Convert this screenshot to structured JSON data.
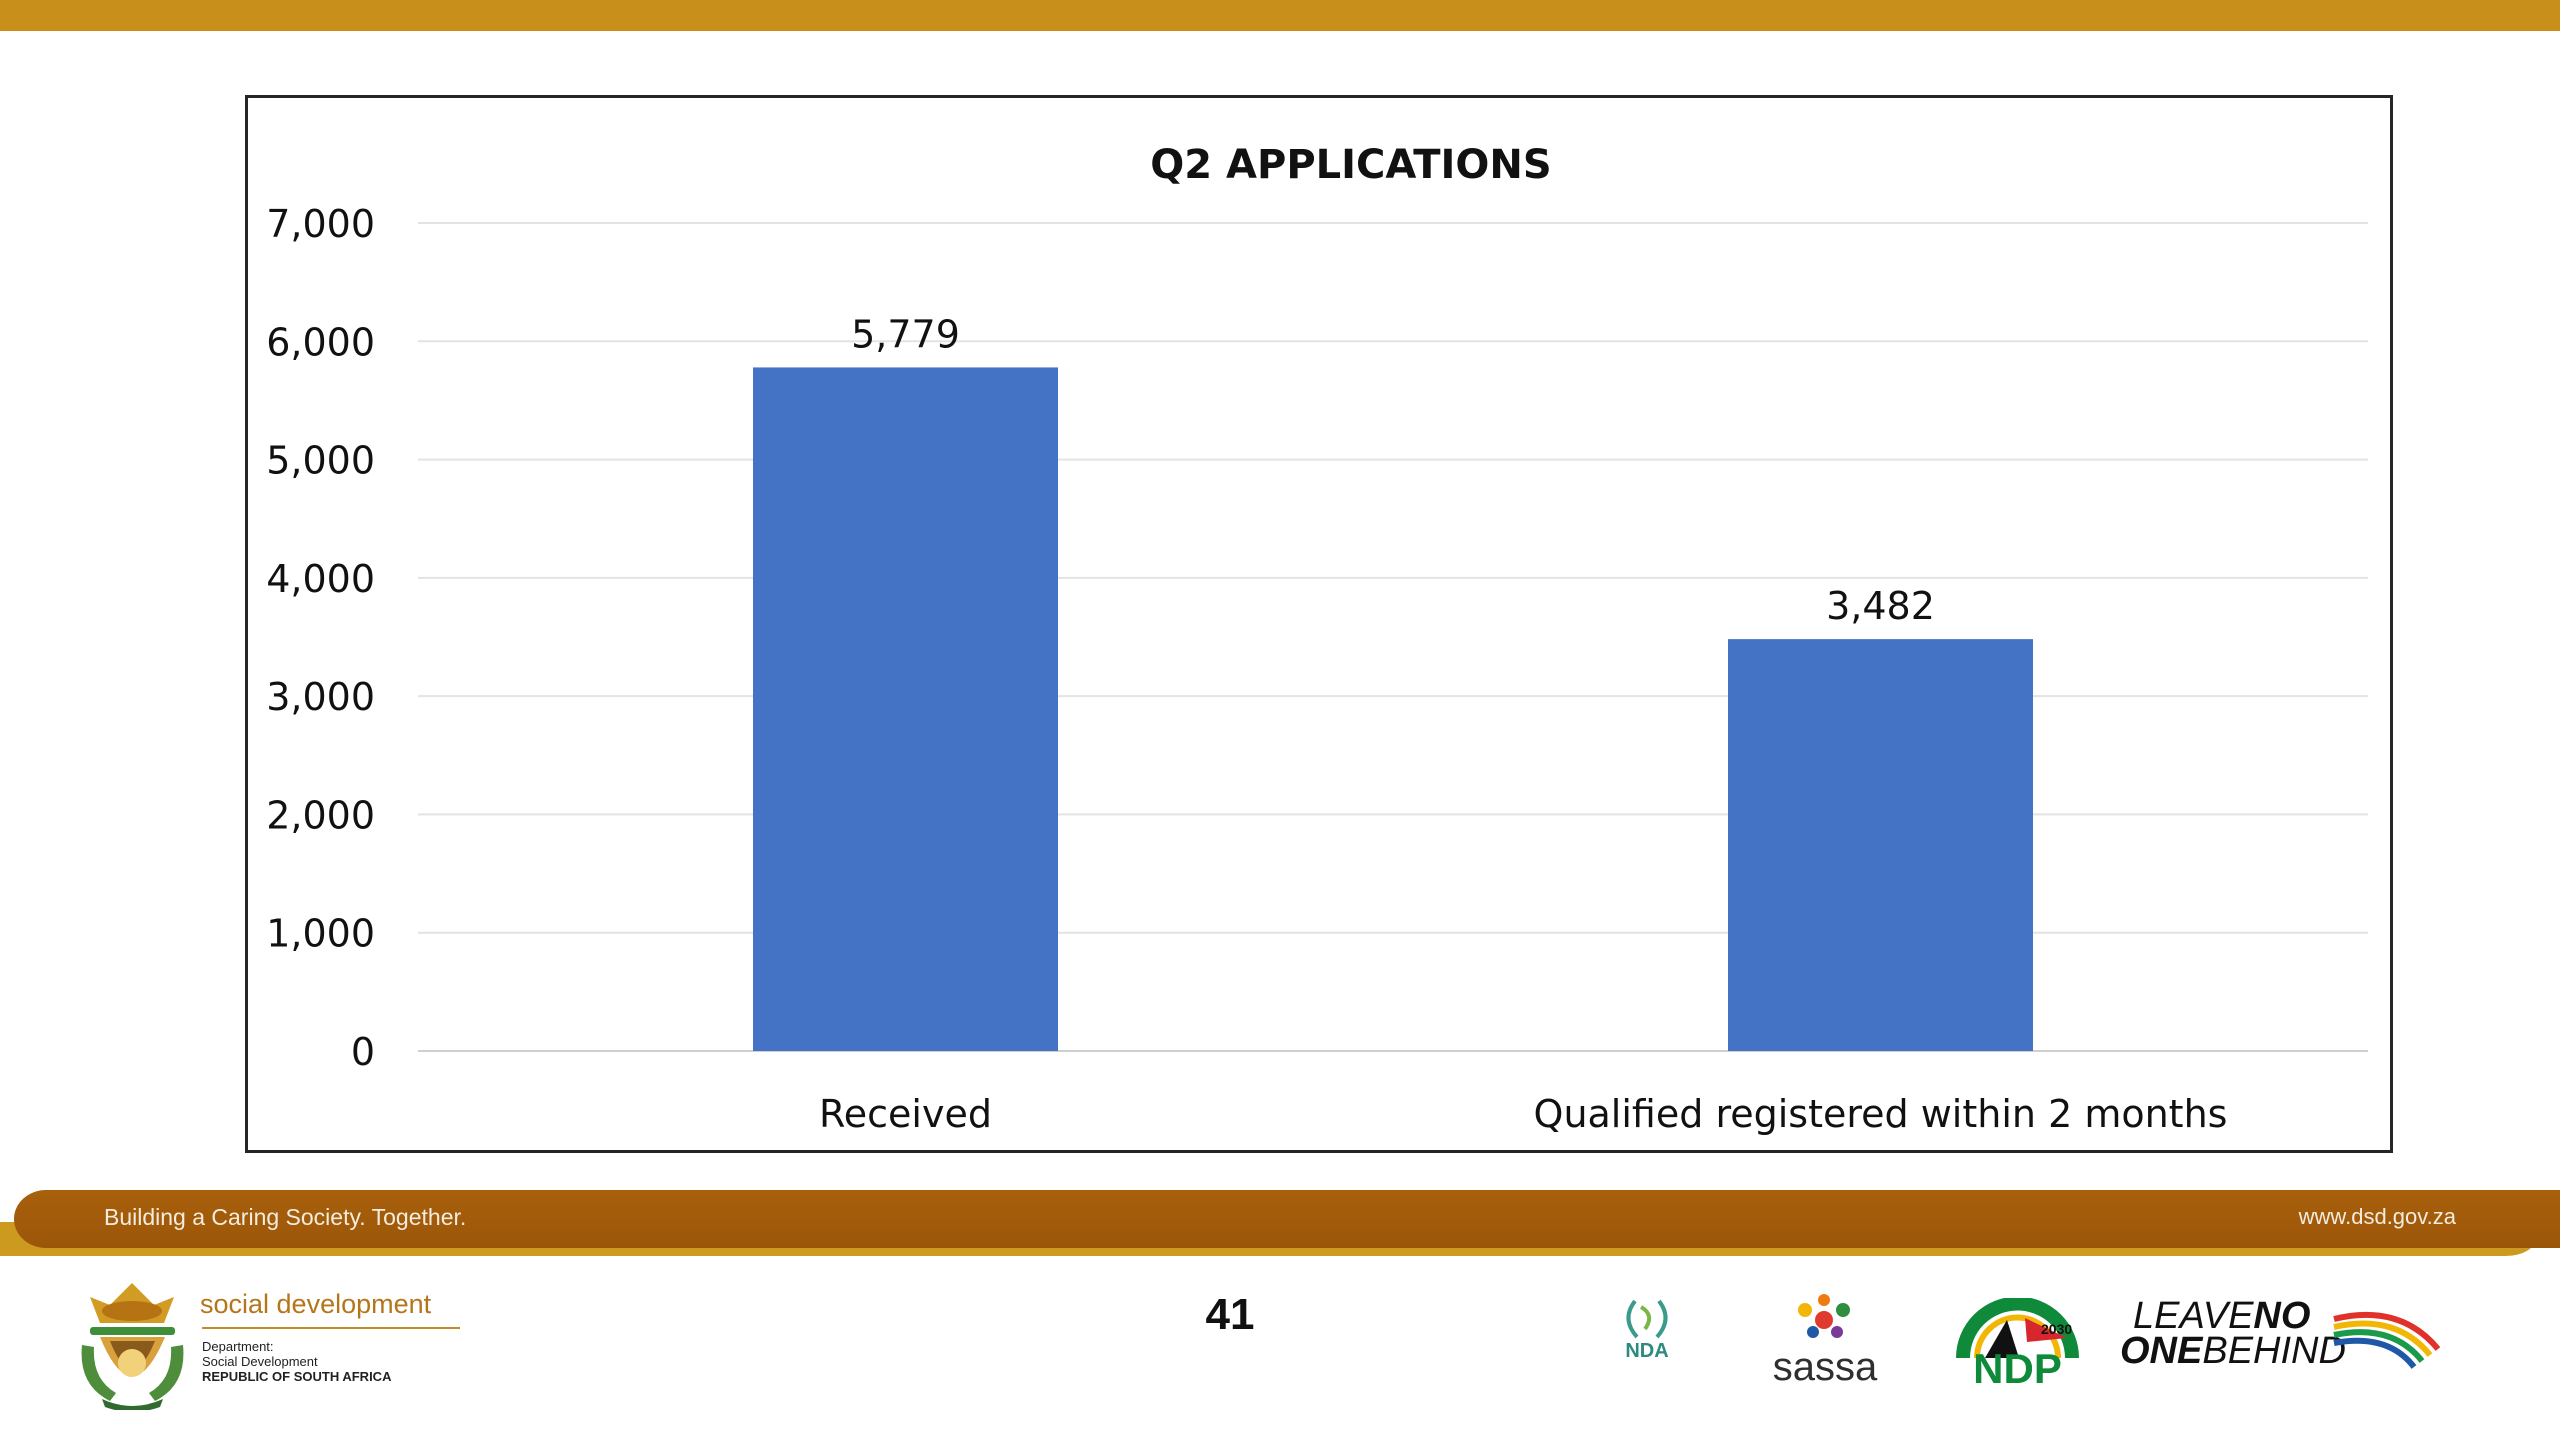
{
  "chart_data": {
    "type": "bar",
    "title": "Q2 APPLICATIONS",
    "categories": [
      "Received",
      "Qualified registered within 2 months"
    ],
    "values": [
      5779,
      3482
    ],
    "data_labels": [
      "5,779",
      "3,482"
    ],
    "ylim": [
      0,
      7000
    ],
    "yticks": [
      0,
      1000,
      2000,
      3000,
      4000,
      5000,
      6000,
      7000
    ],
    "ytick_labels": [
      "0",
      "1,000",
      "2,000",
      "3,000",
      "4,000",
      "5,000",
      "6,000",
      "7,000"
    ],
    "grid": true,
    "legend": "none",
    "bar_color": "#4472c4"
  },
  "footer": {
    "slogan": "Building a Caring Society. Together.",
    "website": "www.dsd.gov.za",
    "band_color": "#a35b0b",
    "accent_color": "#cc9a1f"
  },
  "page_number": "41",
  "department": {
    "title": "social development",
    "line1": "Department:",
    "line2": "Social Development",
    "line3": "REPUBLIC OF SOUTH AFRICA"
  },
  "partners": {
    "nda": "NDA",
    "sassa": "sassa",
    "ndp": "NDP",
    "ndp_year": "2030",
    "lnob_1a": "LEAVE",
    "lnob_1b": "NO",
    "lnob_2a": "ONE",
    "lnob_2b": "BEHIND"
  },
  "icons": {
    "crest": "coat-of-arms-icon",
    "nda": "nda-logo-icon",
    "sassa": "sassa-logo-icon",
    "ndp": "ndp-logo-icon"
  }
}
